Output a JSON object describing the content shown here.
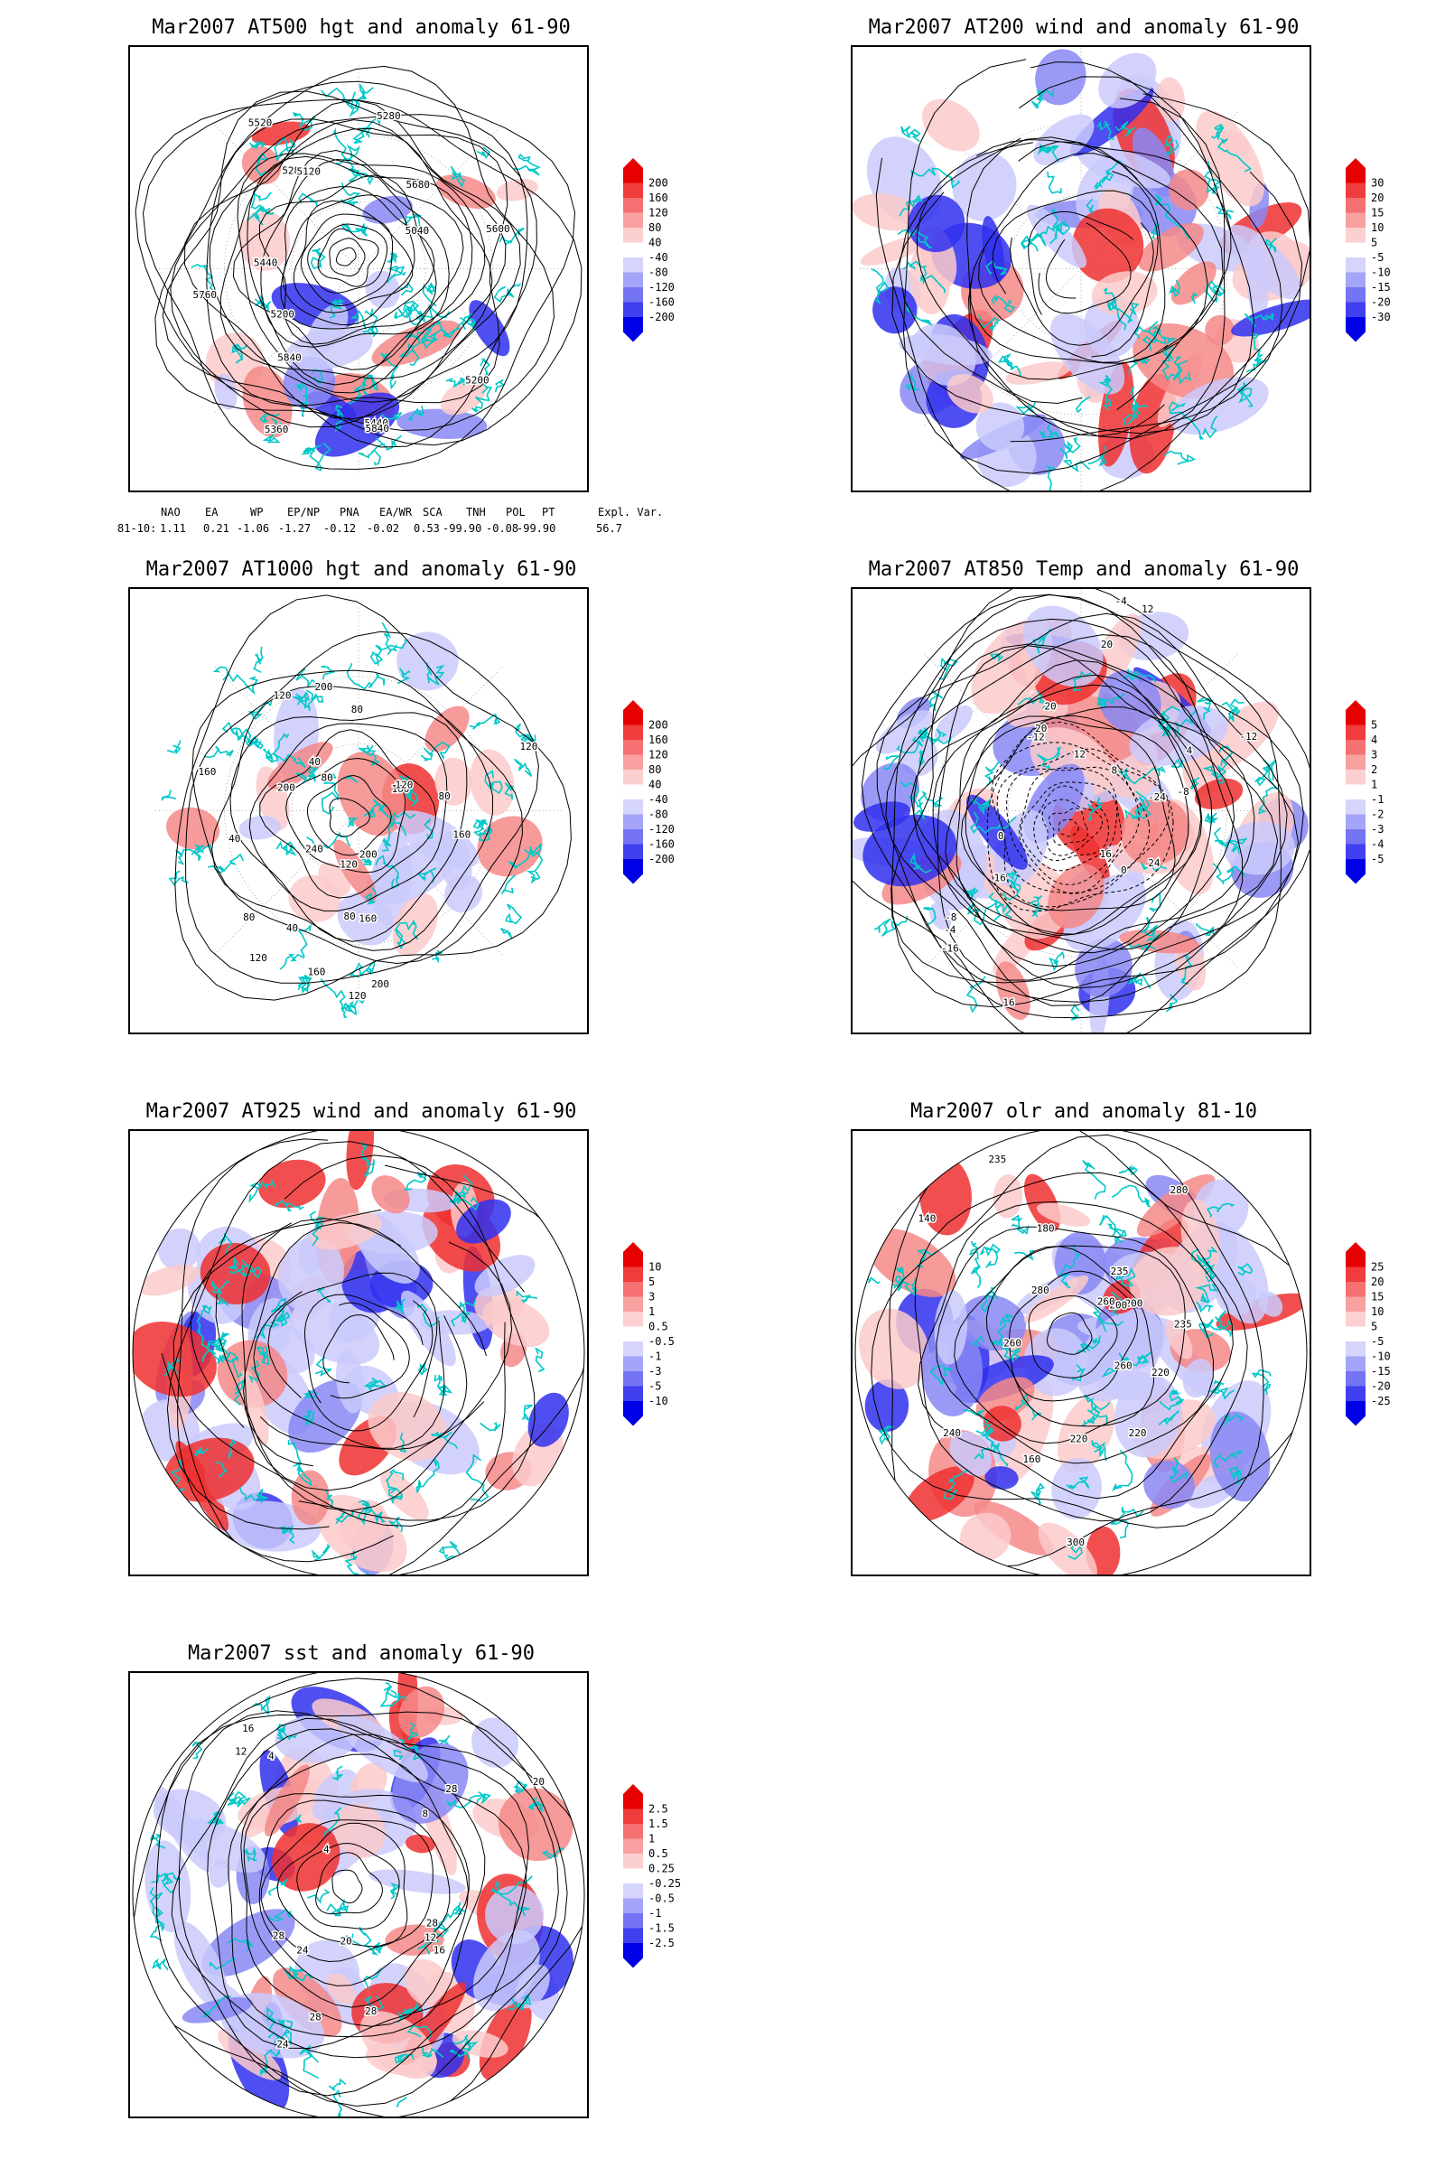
{
  "panels": [
    {
      "id": "at500",
      "title": "Mar2007 AT500 hgt and anomaly 61-90",
      "colorbar": [
        "200",
        "160",
        "120",
        "80",
        "40",
        "-40",
        "-80",
        "-120",
        "-160",
        "-200"
      ],
      "contour_labels": [
        "5840",
        "5440",
        "5360",
        "5280",
        "5200",
        "5040",
        "5120",
        "5440",
        "5520",
        "5600",
        "5680",
        "5760",
        "5840",
        "5280",
        "5200"
      ]
    },
    {
      "id": "at200",
      "title": "Mar2007 AT200 wind and anomaly 61-90",
      "colorbar": [
        "30",
        "20",
        "15",
        "10",
        "5",
        "-5",
        "-10",
        "-15",
        "-20",
        "-30"
      ],
      "contour_labels": []
    },
    {
      "id": "at1000",
      "title": "Mar2007 AT1000 hgt and anomaly 61-90",
      "colorbar": [
        "200",
        "160",
        "120",
        "80",
        "40",
        "-40",
        "-80",
        "-120",
        "-160",
        "-200"
      ],
      "contour_labels": [
        "80",
        "120",
        "80",
        "120",
        "40",
        "200",
        "40",
        "80",
        "160",
        "120",
        "160",
        "120",
        "160",
        "200",
        "240",
        "200",
        "160",
        "120",
        "80",
        "80",
        "40",
        "120",
        "160",
        "200"
      ]
    },
    {
      "id": "at850",
      "title": "Mar2007 AT850 Temp and anomaly 61-90",
      "colorbar": [
        "5",
        "4",
        "3",
        "2",
        "1",
        "-1",
        "-2",
        "-3",
        "-4",
        "-5"
      ],
      "contour_labels": [
        "16",
        "12",
        "16",
        "0",
        "-4",
        "-8",
        "-12",
        "-16",
        "-24",
        "-12",
        "-8",
        "-4",
        "0",
        "4",
        "8",
        "12",
        "16",
        "20",
        "24",
        "20",
        "20"
      ]
    },
    {
      "id": "at925",
      "title": "Mar2007 AT925 wind and anomaly 61-90",
      "colorbar": [
        "10",
        "5",
        "3",
        "1",
        "0.5",
        "-0.5",
        "-1",
        "-3",
        "-5",
        "-10"
      ],
      "contour_labels": []
    },
    {
      "id": "olr",
      "title": "Mar2007 olr and anomaly 81-10",
      "colorbar": [
        "25",
        "20",
        "15",
        "10",
        "5",
        "-5",
        "-10",
        "-15",
        "-20",
        "-25"
      ],
      "contour_labels": [
        "240",
        "260",
        "235",
        "220",
        "200",
        "180",
        "160",
        "140",
        "200",
        "220",
        "260",
        "280",
        "300",
        "235",
        "280",
        "260",
        "220",
        "235"
      ]
    },
    {
      "id": "sst",
      "title": "Mar2007 sst and anomaly 61-90",
      "colorbar": [
        "2.5",
        "1.5",
        "1",
        "0.5",
        "0.25",
        "-0.25",
        "-0.5",
        "-1",
        "-1.5",
        "-2.5"
      ],
      "contour_labels": [
        "28",
        "24",
        "20",
        "16",
        "12",
        "8",
        "4",
        "28",
        "28",
        "20",
        "16",
        "12",
        "4",
        "28",
        "24",
        "28"
      ]
    }
  ],
  "teleconnections": {
    "headers": [
      "NAO",
      "EA",
      "WP",
      "EP/NP",
      "PNA",
      "EA/WR",
      "SCA",
      "TNH",
      "POL",
      "PT",
      "Expl. Var."
    ],
    "row_label": "81-10:",
    "values": [
      "1.11",
      "0.21",
      "-1.06",
      "-1.27",
      "-0.12",
      "-0.02",
      "0.53",
      "-99.90",
      "-0.08",
      "-99.90",
      "56.7"
    ]
  },
  "colors": {
    "coast": "#00c8c8",
    "pos_strong": "#e60000",
    "neg_strong": "#0000e6",
    "contour": "#000000"
  }
}
